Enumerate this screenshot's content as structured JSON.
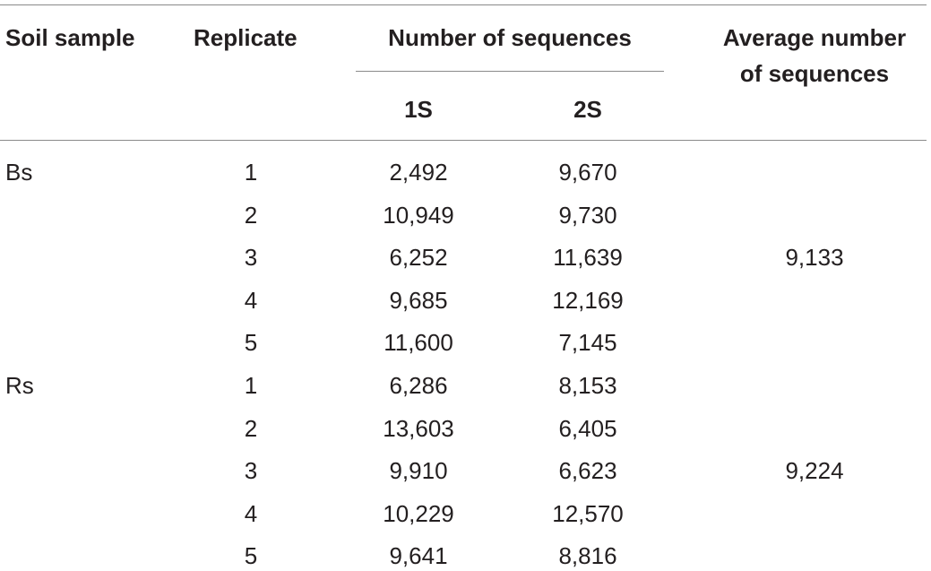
{
  "headers": {
    "soil_sample": "Soil sample",
    "replicate": "Replicate",
    "number_of_sequences": "Number of sequences",
    "sub_1s": "1S",
    "sub_2s": "2S",
    "average_line1": "Average number",
    "average_line2": "of sequences"
  },
  "groups": [
    {
      "sample": "Bs",
      "average": "9,133",
      "rows": [
        {
          "replicate": "1",
          "s1": "2,492",
          "s2": "9,670"
        },
        {
          "replicate": "2",
          "s1": "10,949",
          "s2": "9,730"
        },
        {
          "replicate": "3",
          "s1": "6,252",
          "s2": "11,639"
        },
        {
          "replicate": "4",
          "s1": "9,685",
          "s2": "12,169"
        },
        {
          "replicate": "5",
          "s1": "11,600",
          "s2": "7,145"
        }
      ]
    },
    {
      "sample": "Rs",
      "average": "9,224",
      "rows": [
        {
          "replicate": "1",
          "s1": "6,286",
          "s2": "8,153"
        },
        {
          "replicate": "2",
          "s1": "13,603",
          "s2": "6,405"
        },
        {
          "replicate": "3",
          "s1": "9,910",
          "s2": "6,623"
        },
        {
          "replicate": "4",
          "s1": "10,229",
          "s2": "12,570"
        },
        {
          "replicate": "5",
          "s1": "9,641",
          "s2": "8,816"
        }
      ]
    }
  ]
}
